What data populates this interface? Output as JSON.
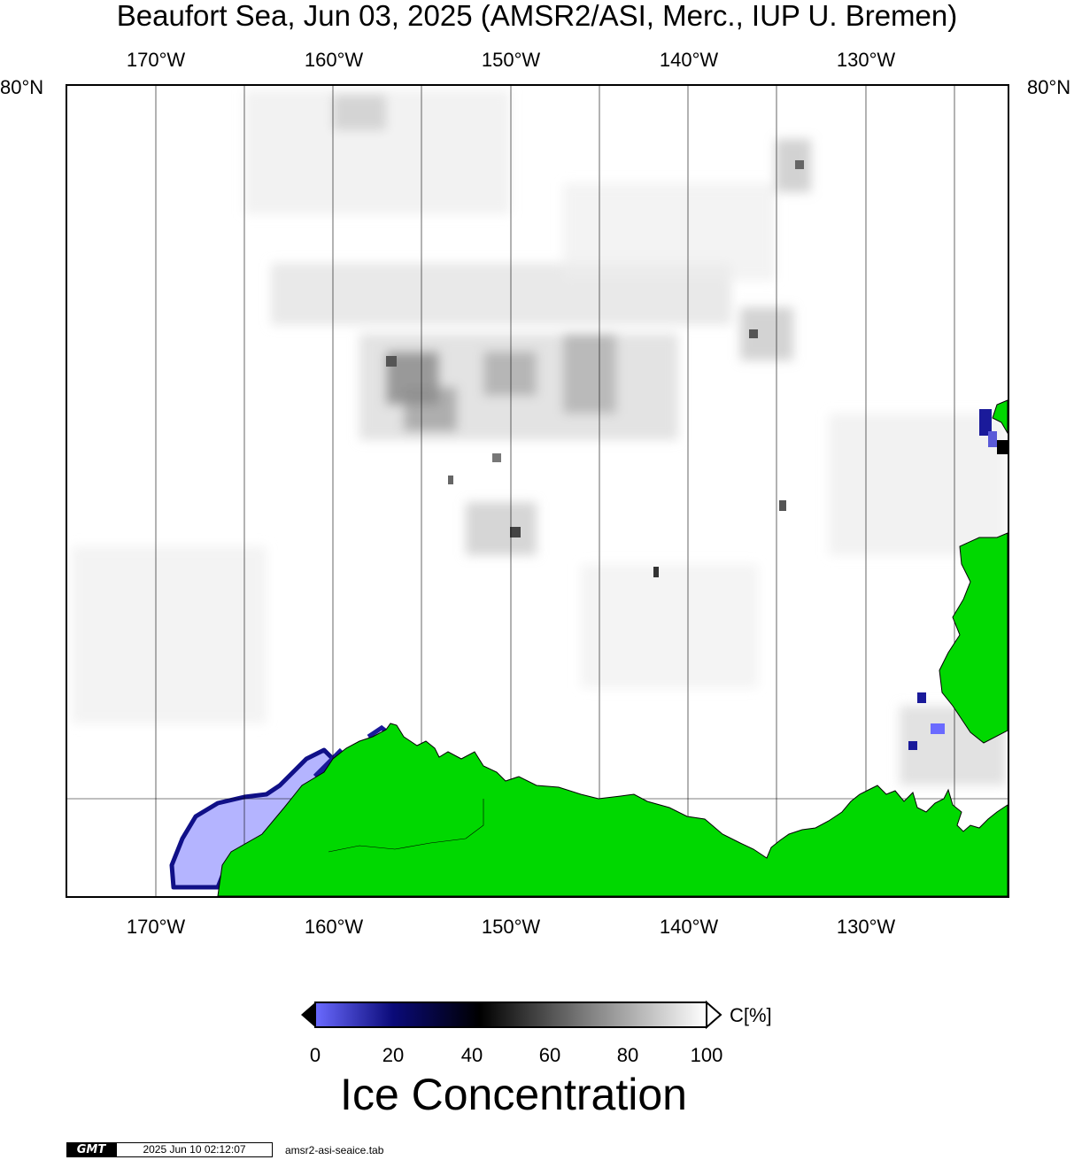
{
  "title": "Beaufort Sea, Jun 03, 2025 (AMSR2/ASI, Merc., IUP U. Bremen)",
  "map": {
    "lon_labels": [
      "170°W",
      "160°W",
      "150°W",
      "140°W",
      "130°W"
    ],
    "lat_label_left": "80°N",
    "lat_label_right": "80°N",
    "colors": {
      "land": "#00d800",
      "open_water_ice": "#b4b4ff",
      "ice_edge": "#2020a0",
      "grid": "#000000"
    }
  },
  "colorbar": {
    "ticks": [
      "0",
      "20",
      "40",
      "60",
      "80",
      "100"
    ],
    "unit": "C[%]",
    "title": "Ice Concentration",
    "colors": [
      "#6a6aff",
      "#0a0a78",
      "#000000",
      "#808080",
      "#ffffff"
    ]
  },
  "footer": {
    "logo": "GMT",
    "timestamp": "2025 Jun 10 02:12:07",
    "filename": "amsr2-asi-seaice.tab"
  }
}
